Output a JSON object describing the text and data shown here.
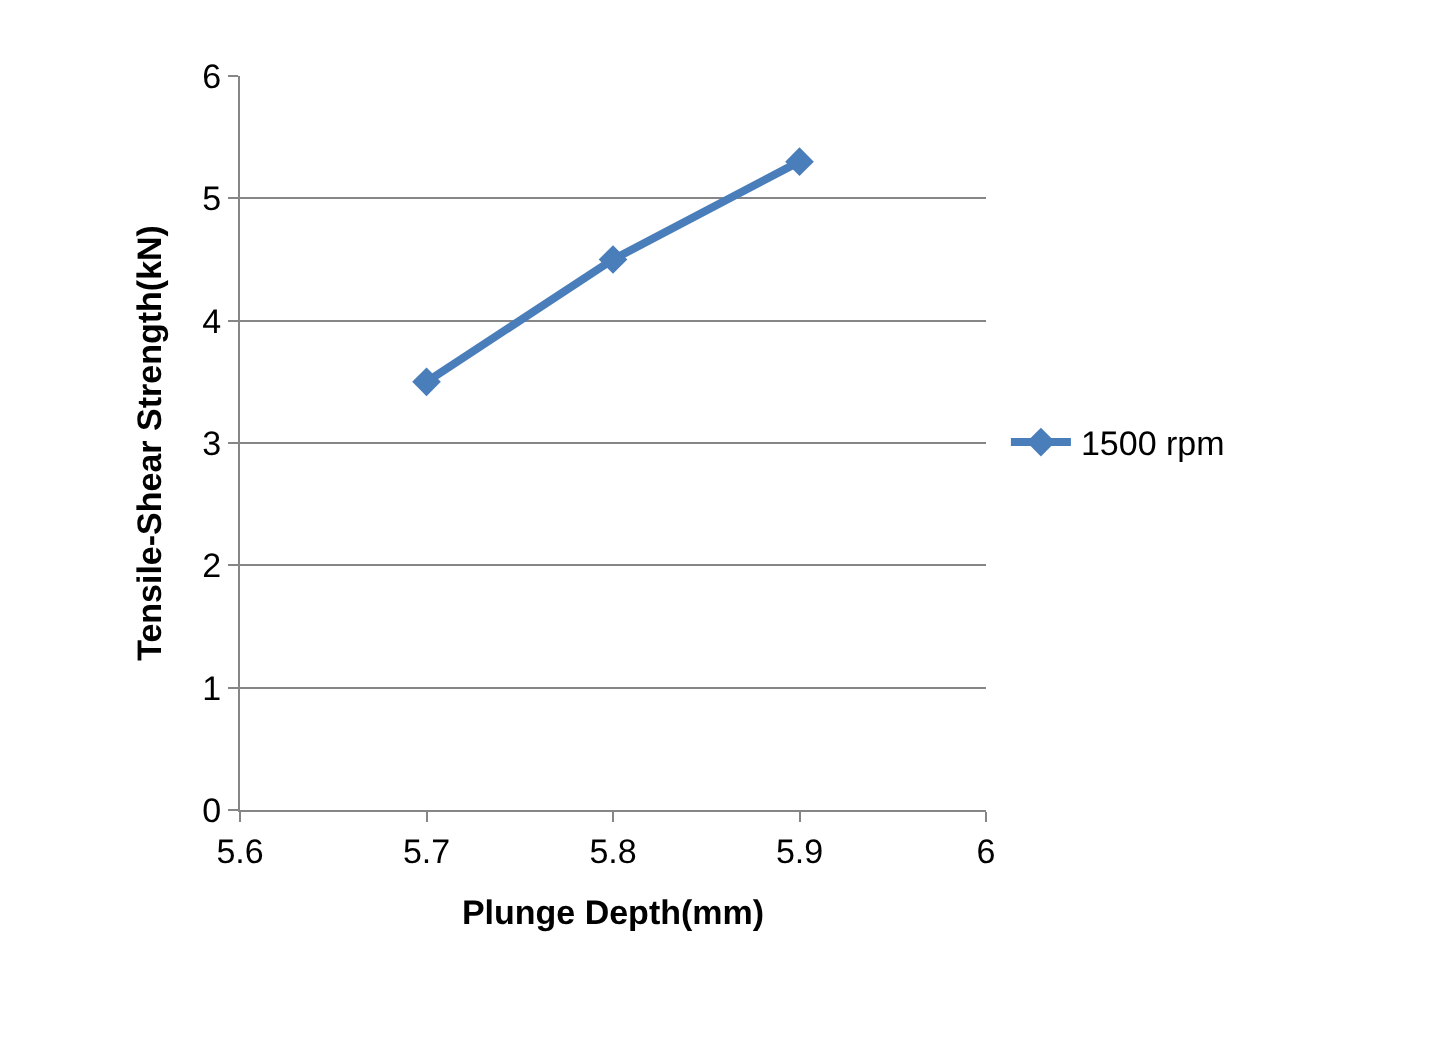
{
  "chart_data": {
    "type": "line",
    "xlabel": "Plunge Depth(mm)",
    "ylabel": "Tensile-Shear Strength(kN)",
    "x": [
      5.7,
      5.8,
      5.9
    ],
    "series": [
      {
        "name": "1500 rpm",
        "color": "#4a7ebb",
        "values": [
          3.5,
          4.5,
          5.3
        ]
      }
    ],
    "xlim": [
      5.6,
      6
    ],
    "xticks": [
      5.6,
      5.7,
      5.8,
      5.9,
      6
    ],
    "ylim": [
      0,
      6
    ],
    "yticks": [
      0,
      1,
      2,
      3,
      4,
      5,
      6
    ],
    "grid": "y",
    "legend": "right",
    "marker": "diamond",
    "line_style": "solid"
  }
}
